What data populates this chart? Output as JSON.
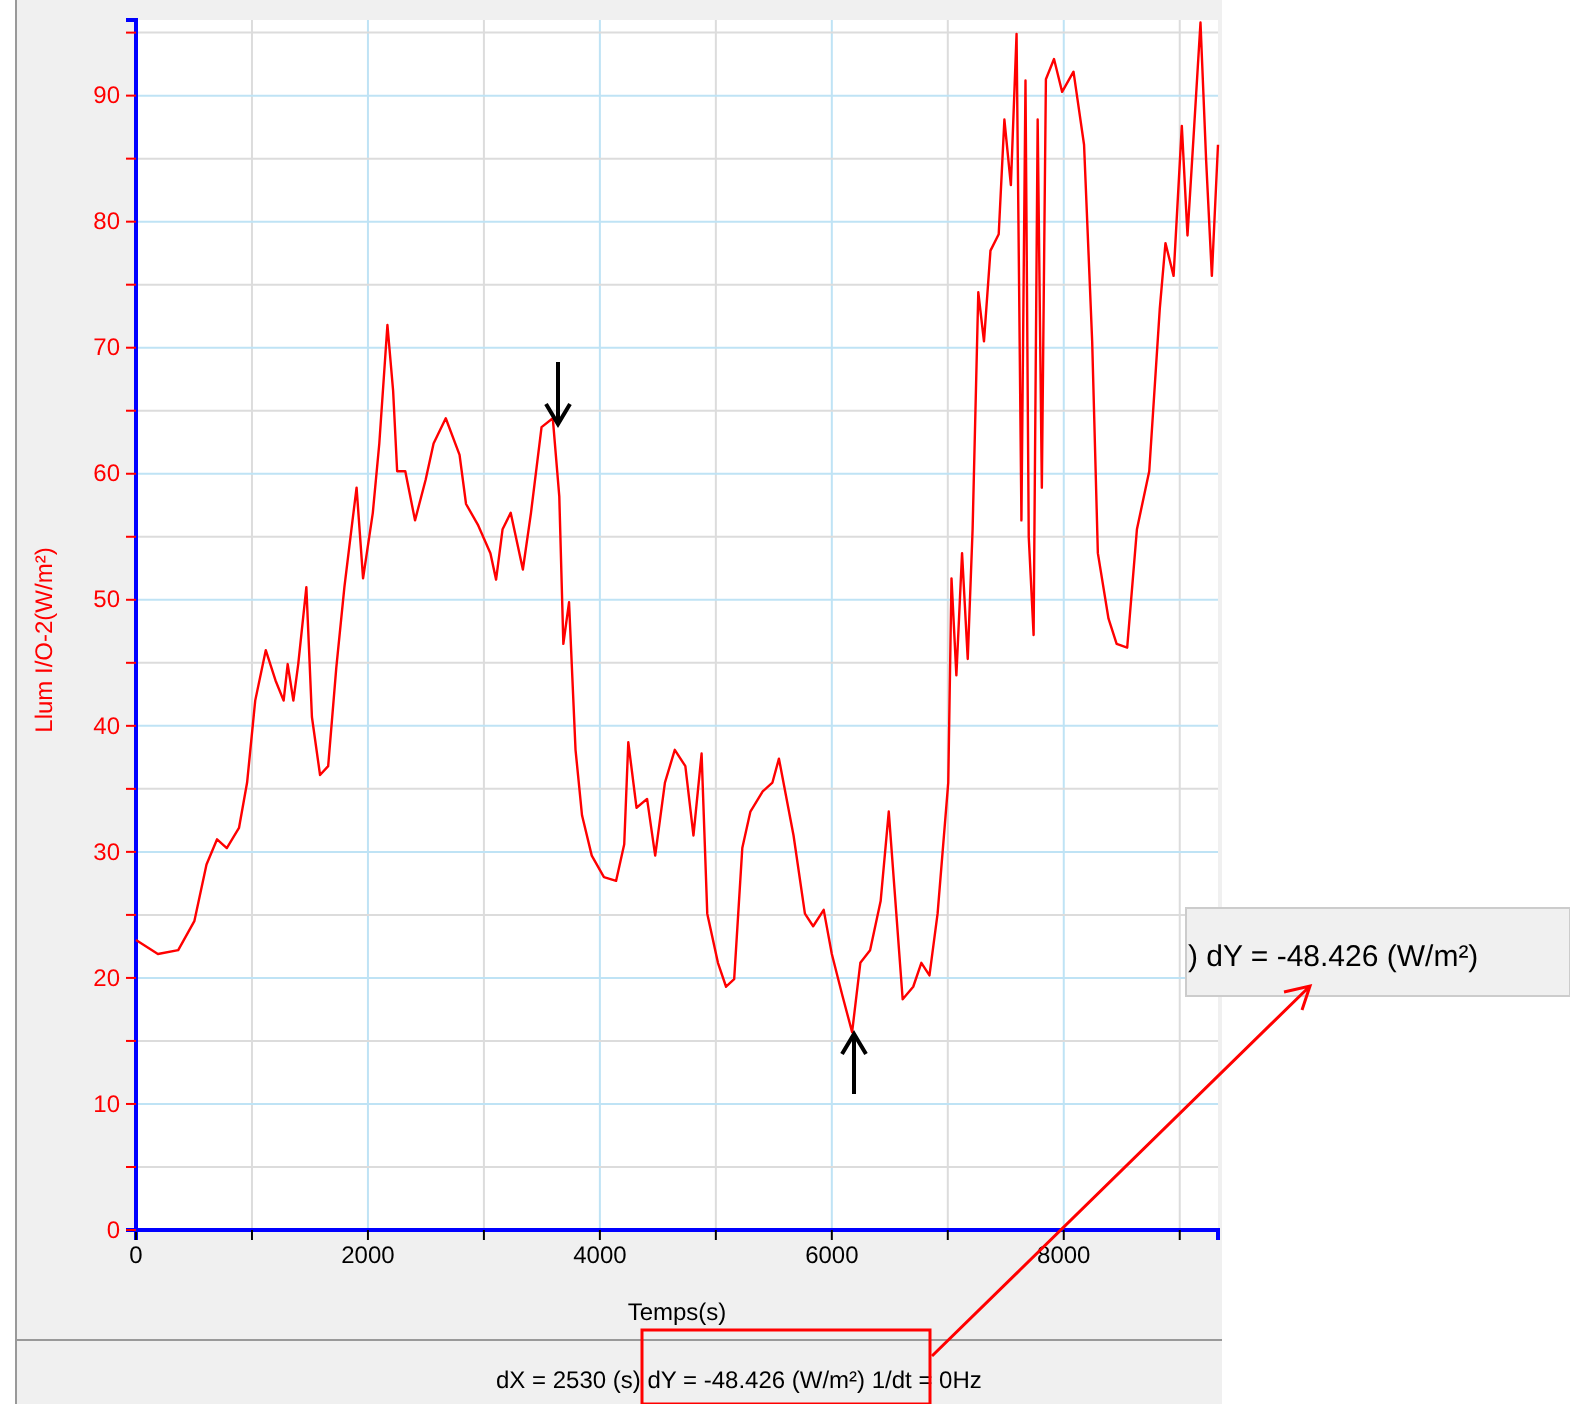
{
  "chart_data": {
    "type": "line",
    "xlabel": "Temps(s)",
    "ylabel": "Llum I/O-2(W/m²)",
    "xlim": [
      0,
      9330
    ],
    "ylim": [
      0,
      96
    ],
    "xticks": [
      0,
      {
        "value": 1000,
        "label": null
      },
      2000,
      {
        "value": 3000,
        "label": null
      },
      4000,
      {
        "value": 5000,
        "label": null
      },
      6000,
      {
        "value": 7000,
        "label": null
      },
      8000,
      {
        "value": 9000,
        "label": null
      }
    ],
    "yticks": [
      0,
      {
        "value": 5,
        "label": null
      },
      10,
      {
        "value": 15,
        "label": null
      },
      20,
      {
        "value": 25,
        "label": null
      },
      30,
      {
        "value": 35,
        "label": null
      },
      40,
      {
        "value": 45,
        "label": null
      },
      50,
      {
        "value": 55,
        "label": null
      },
      60,
      {
        "value": 65,
        "label": null
      },
      70,
      {
        "value": 75,
        "label": null
      },
      80,
      {
        "value": 85,
        "label": null
      },
      90,
      {
        "value": 95,
        "label": null
      }
    ],
    "grid": true,
    "marker": "none",
    "line_style": "solid",
    "x": [
      0,
      189,
      364,
      503,
      608,
      699,
      783,
      888,
      958,
      1028,
      1119,
      1203,
      1273,
      1308,
      1357,
      1399,
      1469,
      1517,
      1587,
      1657,
      1727,
      1797,
      1867,
      1902,
      1958,
      2042,
      2098,
      2168,
      2217,
      2252,
      2322,
      2406,
      2497,
      2566,
      2671,
      2790,
      2846,
      2951,
      3056,
      3105,
      3161,
      3231,
      3336,
      3406,
      3497,
      3594,
      3650,
      3685,
      3734,
      3790,
      3846,
      3930,
      4035,
      4140,
      4210,
      4245,
      4316,
      4407,
      4477,
      4561,
      4646,
      4737,
      4807,
      4877,
      4926,
      5018,
      5088,
      5158,
      5228,
      5298,
      5404,
      5488,
      5544,
      5670,
      5768,
      5839,
      5930,
      6000,
      6091,
      6175,
      6246,
      6330,
      6421,
      6491,
      6540,
      6611,
      6702,
      6772,
      6842,
      6912,
      7004,
      7032,
      7074,
      7123,
      7172,
      7214,
      7263,
      7312,
      7368,
      7439,
      7488,
      7544,
      7593,
      7635,
      7670,
      7698,
      7740,
      7775,
      7811,
      7846,
      7916,
      7986,
      8084,
      8175,
      8245,
      8294,
      8386,
      8456,
      8547,
      8631,
      8737,
      8828,
      8877,
      8947,
      9018,
      9067,
      9123,
      9179,
      9228,
      9277,
      9330
    ],
    "series": [
      {
        "color": "#ff0000",
        "values": [
          23.0,
          21.9,
          22.2,
          24.5,
          29,
          31,
          30.3,
          31.9,
          35.5,
          42,
          46,
          43.6,
          42,
          44.9,
          42,
          44.9,
          51,
          40.7,
          36.1,
          36.8,
          44.6,
          51,
          56.3,
          58.9,
          51.7,
          56.9,
          62.4,
          71.8,
          66.6,
          60.2,
          60.2,
          56.3,
          59.5,
          62.4,
          64.4,
          61.5,
          57.6,
          55.9,
          53.7,
          51.6,
          55.6,
          56.9,
          52.4,
          56.9,
          63.7,
          64.4,
          58.2,
          46.5,
          49.8,
          38.1,
          32.9,
          29.7,
          28,
          27.7,
          30.6,
          38.7,
          33.5,
          34.2,
          29.7,
          35.5,
          38.1,
          36.8,
          31.3,
          37.8,
          25.1,
          21.2,
          19.3,
          19.9,
          30.3,
          33.2,
          34.8,
          35.5,
          37.4,
          31.3,
          25.1,
          24.1,
          25.4,
          21.9,
          18.6,
          15.7,
          21.2,
          22.2,
          26.1,
          33.2,
          27.1,
          18.3,
          19.3,
          21.2,
          20.2,
          25.1,
          35.5,
          51.7,
          44,
          53.7,
          45.3,
          55.6,
          74.4,
          70.5,
          77.7,
          79,
          88.1,
          82.9,
          94.9,
          56.3,
          91.2,
          55,
          47.2,
          88.1,
          58.9,
          91.3,
          92.9,
          90.3,
          91.9,
          86.1,
          70.5,
          53.7,
          48.5,
          46.5,
          46.2,
          55.6,
          60.2,
          73.1,
          78.3,
          75.7,
          87.6,
          78.9,
          87.3,
          95.8,
          84.8,
          75.7,
          86.1
        ]
      }
    ],
    "annotations": [
      "dX = 2530 (s) dY = -48.426 (W/m²)  1/dt = 0Hz",
      ") dY = -48.426 (W/m²)"
    ]
  }
}
